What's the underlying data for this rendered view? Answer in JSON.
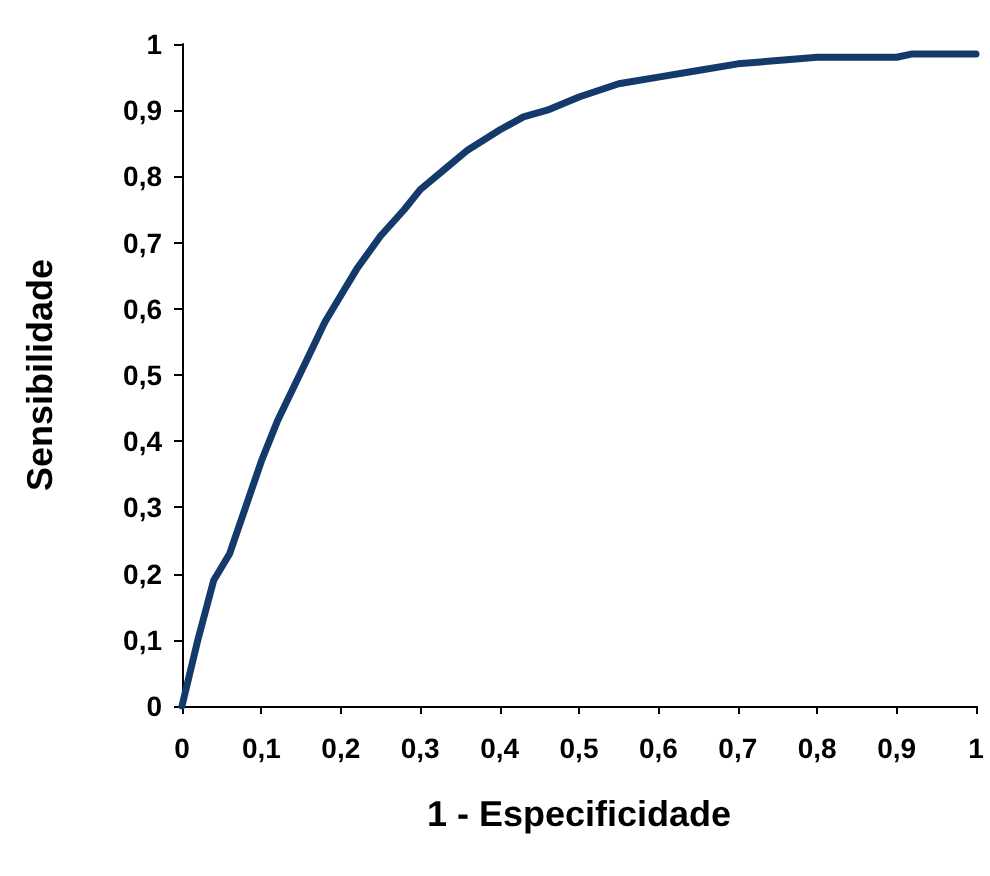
{
  "chart_data": {
    "type": "line",
    "xlabel": "1 - Especificidade",
    "ylabel": "Sensibilidade",
    "x": [
      0,
      0.02,
      0.04,
      0.06,
      0.08,
      0.1,
      0.12,
      0.14,
      0.16,
      0.18,
      0.2,
      0.22,
      0.25,
      0.28,
      0.3,
      0.33,
      0.36,
      0.4,
      0.43,
      0.46,
      0.5,
      0.55,
      0.6,
      0.65,
      0.7,
      0.75,
      0.8,
      0.85,
      0.9,
      0.92,
      0.95,
      1
    ],
    "series": [
      {
        "color": "#143a6b",
        "values": [
          0,
          0.1,
          0.19,
          0.23,
          0.3,
          0.37,
          0.43,
          0.48,
          0.53,
          0.58,
          0.62,
          0.66,
          0.71,
          0.75,
          0.78,
          0.81,
          0.84,
          0.87,
          0.89,
          0.9,
          0.92,
          0.94,
          0.95,
          0.96,
          0.97,
          0.975,
          0.98,
          0.98,
          0.98,
          0.985,
          0.985,
          0.985
        ]
      }
    ],
    "xlim": [
      0,
      1
    ],
    "ylim": [
      0,
      1
    ],
    "xticks": [
      0,
      {
        "value": 0.1,
        "label": "0,1"
      },
      {
        "value": 0.2,
        "label": "0,2"
      },
      {
        "value": 0.3,
        "label": "0,3"
      },
      {
        "value": 0.4,
        "label": "0,4"
      },
      {
        "value": 0.5,
        "label": "0,5"
      },
      {
        "value": 0.6,
        "label": "0,6"
      },
      {
        "value": 0.7,
        "label": "0,7"
      },
      {
        "value": 0.8,
        "label": "0,8"
      },
      {
        "value": 0.9,
        "label": "0,9"
      },
      1
    ],
    "yticks": [
      0,
      {
        "value": 0.1,
        "label": "0,1"
      },
      {
        "value": 0.2,
        "label": "0,2"
      },
      {
        "value": 0.3,
        "label": "0,3"
      },
      {
        "value": 0.4,
        "label": "0,4"
      },
      {
        "value": 0.5,
        "label": "0,5"
      },
      {
        "value": 0.6,
        "label": "0,6"
      },
      {
        "value": 0.7,
        "label": "0,7"
      },
      {
        "value": 0.8,
        "label": "0,8"
      },
      {
        "value": 0.9,
        "label": "0,9"
      },
      1
    ],
    "grid": false,
    "marker": "none",
    "line_style": "solid"
  }
}
